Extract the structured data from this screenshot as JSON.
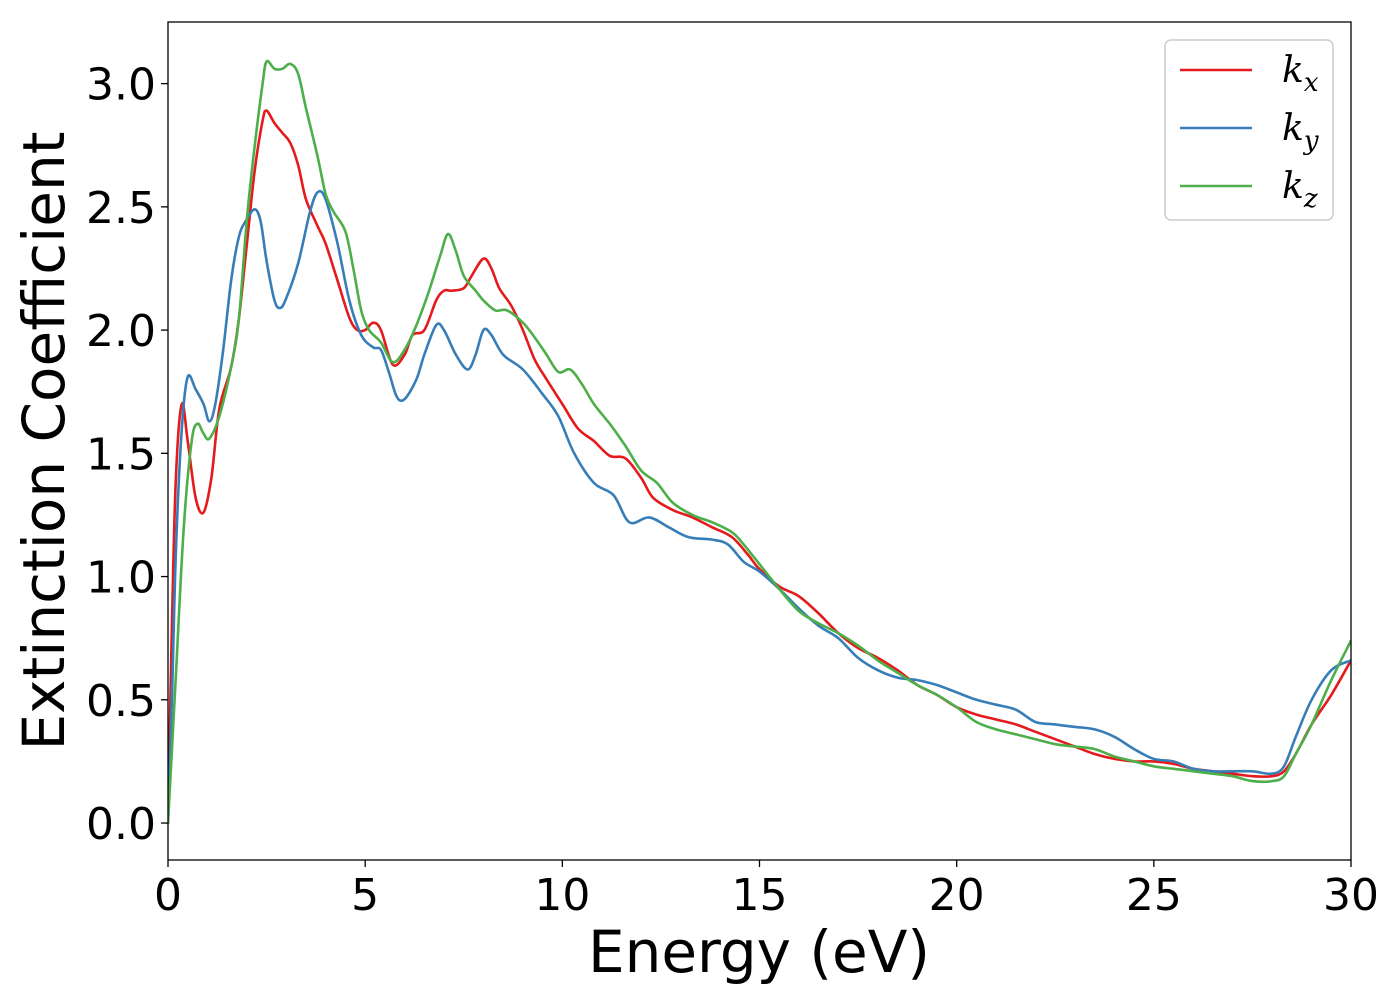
{
  "chart_data": {
    "type": "line",
    "title": "",
    "xlabel": "Energy (eV)",
    "ylabel": "Extinction Coefficient",
    "xlim": [
      0,
      30
    ],
    "ylim": [
      -0.15,
      3.25
    ],
    "x_ticks": [
      0,
      5,
      10,
      15,
      20,
      25,
      30
    ],
    "y_ticks": [
      0.0,
      0.5,
      1.0,
      1.5,
      2.0,
      2.5,
      3.0
    ],
    "x_tick_labels": [
      "0",
      "5",
      "10",
      "15",
      "20",
      "25",
      "30"
    ],
    "y_tick_labels": [
      "0.0",
      "0.5",
      "1.0",
      "1.5",
      "2.0",
      "2.5",
      "3.0"
    ],
    "grid": false,
    "legend_position": "top-right",
    "series": [
      {
        "name": "k_x",
        "legend_base": "k",
        "legend_sub": "x",
        "color": "#e41a1c",
        "points": [
          [
            0,
            0.0
          ],
          [
            0.1,
            0.8
          ],
          [
            0.2,
            1.4
          ],
          [
            0.35,
            1.7
          ],
          [
            0.5,
            1.55
          ],
          [
            0.7,
            1.32
          ],
          [
            0.9,
            1.26
          ],
          [
            1.1,
            1.4
          ],
          [
            1.3,
            1.68
          ],
          [
            1.6,
            1.85
          ],
          [
            1.8,
            2.05
          ],
          [
            2.0,
            2.35
          ],
          [
            2.2,
            2.65
          ],
          [
            2.4,
            2.85
          ],
          [
            2.5,
            2.89
          ],
          [
            2.7,
            2.84
          ],
          [
            2.9,
            2.8
          ],
          [
            3.1,
            2.76
          ],
          [
            3.3,
            2.67
          ],
          [
            3.5,
            2.53
          ],
          [
            3.8,
            2.42
          ],
          [
            4.0,
            2.35
          ],
          [
            4.3,
            2.2
          ],
          [
            4.6,
            2.05
          ],
          [
            4.8,
            2.0
          ],
          [
            5.0,
            2.0
          ],
          [
            5.2,
            2.03
          ],
          [
            5.4,
            2.0
          ],
          [
            5.7,
            1.86
          ],
          [
            6.0,
            1.9
          ],
          [
            6.2,
            1.98
          ],
          [
            6.5,
            2.0
          ],
          [
            6.8,
            2.12
          ],
          [
            7.0,
            2.16
          ],
          [
            7.2,
            2.16
          ],
          [
            7.5,
            2.17
          ],
          [
            7.7,
            2.22
          ],
          [
            8.0,
            2.29
          ],
          [
            8.2,
            2.25
          ],
          [
            8.4,
            2.17
          ],
          [
            8.7,
            2.1
          ],
          [
            9.0,
            2.0
          ],
          [
            9.3,
            1.88
          ],
          [
            9.6,
            1.8
          ],
          [
            10.0,
            1.7
          ],
          [
            10.4,
            1.6
          ],
          [
            10.8,
            1.55
          ],
          [
            11.2,
            1.49
          ],
          [
            11.6,
            1.48
          ],
          [
            12.0,
            1.4
          ],
          [
            12.3,
            1.32
          ],
          [
            12.8,
            1.27
          ],
          [
            13.3,
            1.24
          ],
          [
            13.8,
            1.2
          ],
          [
            14.3,
            1.16
          ],
          [
            14.7,
            1.09
          ],
          [
            15.0,
            1.03
          ],
          [
            15.5,
            0.96
          ],
          [
            16.0,
            0.92
          ],
          [
            16.5,
            0.85
          ],
          [
            17.0,
            0.77
          ],
          [
            17.5,
            0.71
          ],
          [
            18.0,
            0.67
          ],
          [
            18.5,
            0.62
          ],
          [
            19.0,
            0.56
          ],
          [
            19.5,
            0.52
          ],
          [
            20.0,
            0.47
          ],
          [
            20.5,
            0.44
          ],
          [
            21.0,
            0.42
          ],
          [
            21.5,
            0.4
          ],
          [
            22.0,
            0.37
          ],
          [
            22.5,
            0.34
          ],
          [
            23.0,
            0.31
          ],
          [
            23.5,
            0.28
          ],
          [
            24.0,
            0.26
          ],
          [
            24.5,
            0.25
          ],
          [
            25.0,
            0.25
          ],
          [
            25.5,
            0.24
          ],
          [
            26.0,
            0.22
          ],
          [
            26.5,
            0.21
          ],
          [
            27.0,
            0.2
          ],
          [
            27.5,
            0.19
          ],
          [
            28.0,
            0.19
          ],
          [
            28.3,
            0.21
          ],
          [
            28.6,
            0.28
          ],
          [
            29.0,
            0.4
          ],
          [
            29.5,
            0.52
          ],
          [
            30.0,
            0.66
          ]
        ]
      },
      {
        "name": "k_y",
        "legend_base": "k",
        "legend_sub": "y",
        "color": "#377eb8",
        "points": [
          [
            0,
            0.0
          ],
          [
            0.1,
            0.5
          ],
          [
            0.2,
            1.1
          ],
          [
            0.35,
            1.6
          ],
          [
            0.5,
            1.81
          ],
          [
            0.7,
            1.76
          ],
          [
            0.9,
            1.7
          ],
          [
            1.05,
            1.63
          ],
          [
            1.2,
            1.7
          ],
          [
            1.4,
            1.92
          ],
          [
            1.6,
            2.2
          ],
          [
            1.8,
            2.38
          ],
          [
            2.0,
            2.45
          ],
          [
            2.2,
            2.49
          ],
          [
            2.35,
            2.44
          ],
          [
            2.5,
            2.28
          ],
          [
            2.7,
            2.12
          ],
          [
            2.85,
            2.09
          ],
          [
            3.0,
            2.13
          ],
          [
            3.3,
            2.27
          ],
          [
            3.6,
            2.48
          ],
          [
            3.8,
            2.56
          ],
          [
            4.0,
            2.53
          ],
          [
            4.3,
            2.35
          ],
          [
            4.6,
            2.12
          ],
          [
            4.9,
            1.98
          ],
          [
            5.2,
            1.93
          ],
          [
            5.4,
            1.92
          ],
          [
            5.6,
            1.83
          ],
          [
            5.8,
            1.73
          ],
          [
            6.0,
            1.72
          ],
          [
            6.3,
            1.8
          ],
          [
            6.5,
            1.9
          ],
          [
            6.8,
            2.02
          ],
          [
            7.0,
            2.0
          ],
          [
            7.3,
            1.9
          ],
          [
            7.6,
            1.84
          ],
          [
            7.8,
            1.9
          ],
          [
            8.0,
            2.0
          ],
          [
            8.2,
            1.98
          ],
          [
            8.5,
            1.9
          ],
          [
            9.0,
            1.84
          ],
          [
            9.5,
            1.74
          ],
          [
            9.9,
            1.65
          ],
          [
            10.3,
            1.5
          ],
          [
            10.8,
            1.38
          ],
          [
            11.3,
            1.33
          ],
          [
            11.7,
            1.22
          ],
          [
            12.2,
            1.24
          ],
          [
            12.7,
            1.2
          ],
          [
            13.2,
            1.16
          ],
          [
            13.8,
            1.15
          ],
          [
            14.2,
            1.13
          ],
          [
            14.6,
            1.06
          ],
          [
            15.0,
            1.02
          ],
          [
            15.5,
            0.95
          ],
          [
            16.0,
            0.87
          ],
          [
            16.5,
            0.8
          ],
          [
            17.0,
            0.75
          ],
          [
            17.5,
            0.67
          ],
          [
            18.0,
            0.62
          ],
          [
            18.5,
            0.59
          ],
          [
            19.0,
            0.58
          ],
          [
            19.5,
            0.56
          ],
          [
            20.0,
            0.53
          ],
          [
            20.5,
            0.5
          ],
          [
            21.0,
            0.48
          ],
          [
            21.5,
            0.46
          ],
          [
            22.0,
            0.41
          ],
          [
            22.5,
            0.4
          ],
          [
            23.0,
            0.39
          ],
          [
            23.5,
            0.38
          ],
          [
            24.0,
            0.35
          ],
          [
            24.5,
            0.3
          ],
          [
            25.0,
            0.26
          ],
          [
            25.5,
            0.25
          ],
          [
            26.0,
            0.22
          ],
          [
            26.5,
            0.21
          ],
          [
            27.0,
            0.21
          ],
          [
            27.5,
            0.21
          ],
          [
            28.0,
            0.2
          ],
          [
            28.3,
            0.23
          ],
          [
            28.6,
            0.35
          ],
          [
            29.0,
            0.5
          ],
          [
            29.5,
            0.62
          ],
          [
            30.0,
            0.66
          ]
        ]
      },
      {
        "name": "k_z",
        "legend_base": "k",
        "legend_sub": "z",
        "color": "#4daf4a",
        "points": [
          [
            0,
            0.0
          ],
          [
            0.2,
            0.6
          ],
          [
            0.4,
            1.2
          ],
          [
            0.6,
            1.55
          ],
          [
            0.75,
            1.62
          ],
          [
            0.9,
            1.58
          ],
          [
            1.05,
            1.56
          ],
          [
            1.3,
            1.65
          ],
          [
            1.6,
            1.85
          ],
          [
            1.8,
            2.05
          ],
          [
            2.0,
            2.45
          ],
          [
            2.2,
            2.75
          ],
          [
            2.4,
            3.0
          ],
          [
            2.5,
            3.09
          ],
          [
            2.7,
            3.06
          ],
          [
            2.9,
            3.06
          ],
          [
            3.1,
            3.08
          ],
          [
            3.3,
            3.04
          ],
          [
            3.5,
            2.9
          ],
          [
            3.8,
            2.7
          ],
          [
            4.0,
            2.55
          ],
          [
            4.2,
            2.48
          ],
          [
            4.5,
            2.4
          ],
          [
            4.7,
            2.25
          ],
          [
            4.9,
            2.08
          ],
          [
            5.1,
            2.0
          ],
          [
            5.4,
            1.95
          ],
          [
            5.7,
            1.87
          ],
          [
            6.0,
            1.92
          ],
          [
            6.3,
            2.02
          ],
          [
            6.6,
            2.15
          ],
          [
            6.9,
            2.3
          ],
          [
            7.1,
            2.39
          ],
          [
            7.3,
            2.32
          ],
          [
            7.5,
            2.22
          ],
          [
            7.8,
            2.16
          ],
          [
            8.0,
            2.12
          ],
          [
            8.3,
            2.08
          ],
          [
            8.6,
            2.08
          ],
          [
            9.0,
            2.03
          ],
          [
            9.3,
            1.97
          ],
          [
            9.6,
            1.9
          ],
          [
            9.9,
            1.83
          ],
          [
            10.2,
            1.84
          ],
          [
            10.5,
            1.78
          ],
          [
            10.8,
            1.7
          ],
          [
            11.2,
            1.62
          ],
          [
            11.6,
            1.53
          ],
          [
            12.0,
            1.43
          ],
          [
            12.4,
            1.38
          ],
          [
            12.8,
            1.3
          ],
          [
            13.3,
            1.25
          ],
          [
            13.8,
            1.22
          ],
          [
            14.3,
            1.18
          ],
          [
            14.6,
            1.13
          ],
          [
            15.0,
            1.05
          ],
          [
            15.5,
            0.95
          ],
          [
            16.0,
            0.86
          ],
          [
            16.5,
            0.81
          ],
          [
            17.0,
            0.77
          ],
          [
            17.5,
            0.72
          ],
          [
            18.0,
            0.66
          ],
          [
            18.5,
            0.61
          ],
          [
            19.0,
            0.56
          ],
          [
            19.5,
            0.52
          ],
          [
            20.0,
            0.47
          ],
          [
            20.5,
            0.41
          ],
          [
            21.0,
            0.38
          ],
          [
            21.5,
            0.36
          ],
          [
            22.0,
            0.34
          ],
          [
            22.5,
            0.32
          ],
          [
            23.0,
            0.31
          ],
          [
            23.5,
            0.3
          ],
          [
            24.0,
            0.27
          ],
          [
            24.5,
            0.25
          ],
          [
            25.0,
            0.23
          ],
          [
            25.5,
            0.22
          ],
          [
            26.0,
            0.21
          ],
          [
            26.5,
            0.2
          ],
          [
            27.0,
            0.19
          ],
          [
            27.5,
            0.17
          ],
          [
            28.0,
            0.17
          ],
          [
            28.3,
            0.19
          ],
          [
            28.6,
            0.28
          ],
          [
            29.0,
            0.4
          ],
          [
            29.5,
            0.58
          ],
          [
            30.0,
            0.74
          ]
        ]
      }
    ]
  }
}
